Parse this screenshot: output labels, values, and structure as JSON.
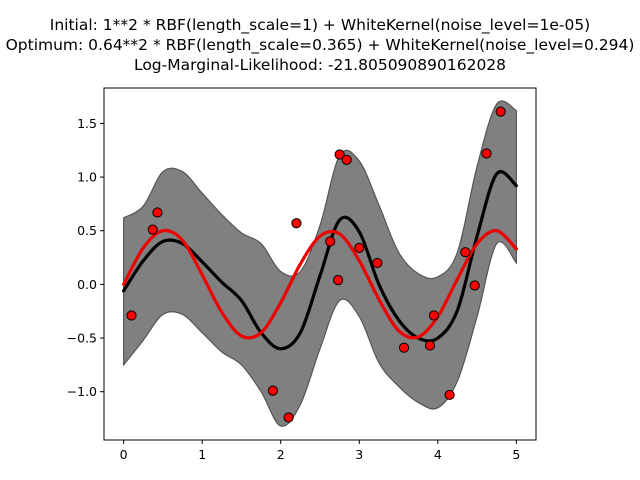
{
  "chart_data": {
    "type": "line",
    "title_lines": [
      "Initial: 1**2 * RBF(length_scale=1) + WhiteKernel(noise_level=1e-05)",
      "Optimum: 0.64**2 * RBF(length_scale=0.365) + WhiteKernel(noise_level=0.294)",
      "Log-Marginal-Likelihood: -21.805090890162028"
    ],
    "xlabel": "",
    "ylabel": "",
    "xlim": [
      -0.25,
      5.25
    ],
    "ylim": [
      -1.45,
      1.83
    ],
    "xticks": [
      0,
      1,
      2,
      3,
      4,
      5
    ],
    "xtick_labels": [
      "0",
      "1",
      "2",
      "3",
      "4",
      "5"
    ],
    "yticks": [
      -1.0,
      -0.5,
      0.0,
      0.5,
      1.0,
      1.5
    ],
    "ytick_labels": [
      "−1.0",
      "−0.5",
      "0.0",
      "0.5",
      "1.0",
      "1.5"
    ],
    "grid": false,
    "colors": {
      "band_fill": "#808080",
      "band_edge": "#555555",
      "mean_line": "#000000",
      "true_line": "#ee0000",
      "points_fill": "#ff0000",
      "points_edge": "#000000"
    },
    "series": [
      {
        "kind": "band",
        "x": [
          0,
          0.25,
          0.5,
          0.75,
          1.0,
          1.25,
          1.5,
          1.75,
          2.0,
          2.25,
          2.5,
          2.75,
          3.0,
          3.25,
          3.5,
          3.75,
          4.0,
          4.25,
          4.5,
          4.75,
          5.0
        ],
        "lower": [
          -0.75,
          -0.52,
          -0.28,
          -0.28,
          -0.45,
          -0.63,
          -0.75,
          -1.0,
          -1.32,
          -1.12,
          -0.6,
          -0.15,
          -0.3,
          -0.73,
          -0.95,
          -1.1,
          -1.15,
          -0.9,
          -0.3,
          0.38,
          0.2
        ],
        "upper": [
          0.62,
          0.73,
          1.05,
          1.05,
          0.85,
          0.65,
          0.48,
          0.38,
          0.12,
          0.12,
          0.55,
          1.2,
          1.15,
          0.74,
          0.3,
          0.1,
          0.07,
          0.3,
          1.1,
          1.68,
          1.62
        ]
      },
      {
        "kind": "line",
        "x": [
          0,
          0.25,
          0.5,
          0.75,
          1.0,
          1.25,
          1.5,
          1.75,
          2.0,
          2.25,
          2.5,
          2.75,
          3.0,
          3.25,
          3.5,
          3.75,
          4.0,
          4.25,
          4.5,
          4.75,
          5.0
        ],
        "y": [
          -0.06,
          0.22,
          0.4,
          0.38,
          0.21,
          0.02,
          -0.15,
          -0.45,
          -0.6,
          -0.45,
          0.08,
          0.6,
          0.49,
          0.0,
          -0.33,
          -0.5,
          -0.5,
          -0.24,
          0.45,
          1.03,
          0.92
        ]
      },
      {
        "kind": "line",
        "x": [
          0,
          0.25,
          0.5,
          0.75,
          1.0,
          1.25,
          1.5,
          1.75,
          2.0,
          2.25,
          2.5,
          2.75,
          3.0,
          3.25,
          3.5,
          3.75,
          4.0,
          4.25,
          4.5,
          4.75,
          5.0
        ],
        "y": [
          0.0,
          0.34,
          0.5,
          0.41,
          0.09,
          -0.26,
          -0.48,
          -0.45,
          -0.17,
          0.19,
          0.45,
          0.47,
          0.22,
          -0.14,
          -0.43,
          -0.49,
          -0.3,
          0.05,
          0.38,
          0.5,
          0.33
        ]
      },
      {
        "kind": "scatter",
        "x": [
          0.1,
          0.37,
          0.43,
          1.9,
          2.1,
          2.2,
          2.63,
          2.73,
          2.75,
          2.84,
          3.0,
          3.23,
          3.57,
          3.9,
          3.95,
          4.15,
          4.35,
          4.47,
          4.62,
          4.8
        ],
        "y": [
          -0.29,
          0.51,
          0.67,
          -0.99,
          -1.24,
          0.57,
          0.4,
          0.04,
          1.21,
          1.16,
          0.34,
          0.2,
          -0.59,
          -0.57,
          -0.29,
          -1.03,
          0.3,
          -0.01,
          1.22,
          1.61
        ]
      }
    ]
  }
}
